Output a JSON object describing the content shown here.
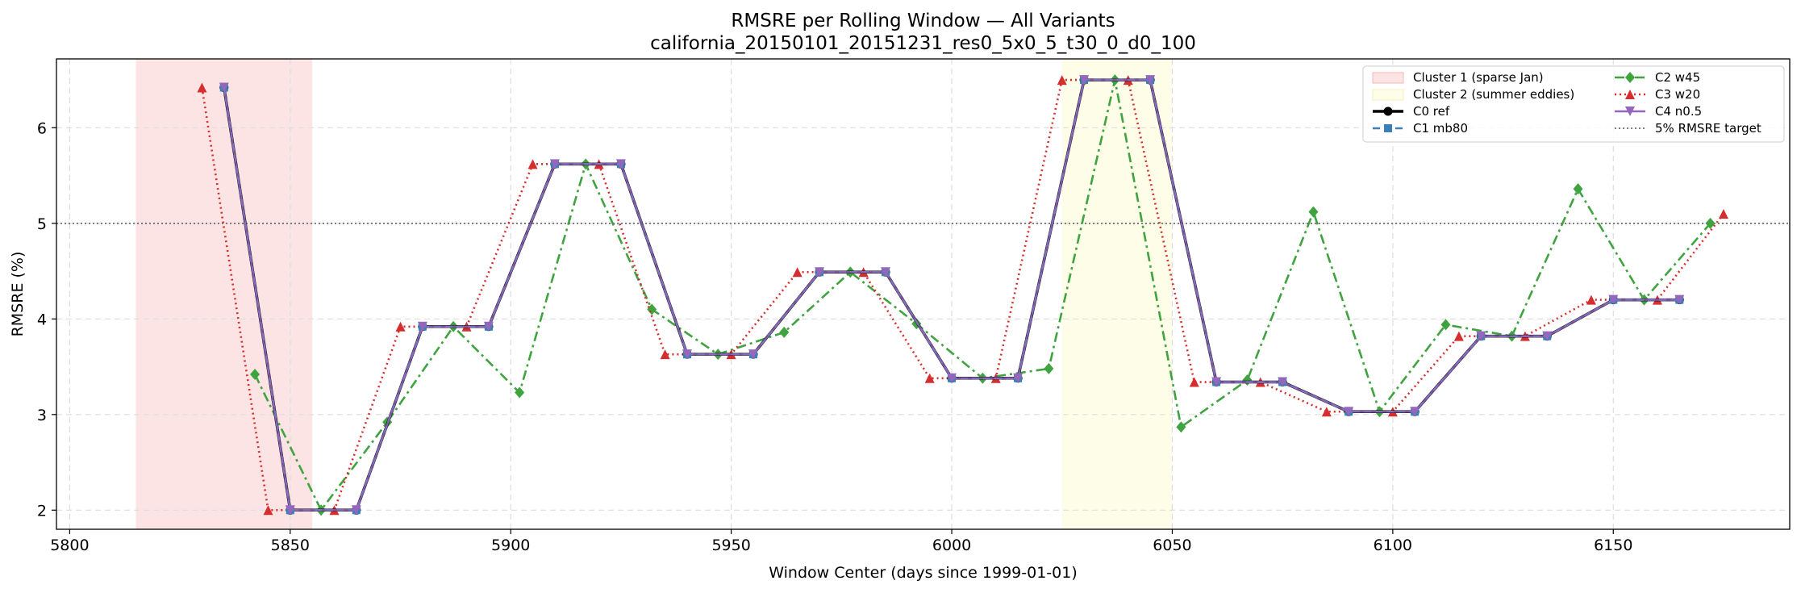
{
  "chart_data": {
    "type": "line",
    "title": "RMSRE per Rolling Window — All Variants",
    "subtitle": "california_20150101_20151231_res0_5x0_5_t30_0_d0_100",
    "xlabel": "Window Center (days since 1999-01-01)",
    "ylabel": "RMSRE (%)",
    "xlim": [
      5797,
      6190
    ],
    "ylim": [
      1.8,
      6.72
    ],
    "xticks": [
      5800,
      5850,
      5900,
      5950,
      6000,
      6050,
      6100,
      6150
    ],
    "yticks": [
      2,
      3,
      4,
      5,
      6
    ],
    "grid": true,
    "legend_position": "top-right",
    "reference_line": {
      "y": 5,
      "label": "5% RMSRE target",
      "color": "#555555"
    },
    "shaded_regions": [
      {
        "label": "Cluster 1 (sparse Jan)",
        "x": [
          5815,
          5855
        ],
        "color": "#fde4e4"
      },
      {
        "label": "Cluster 2 (summer eddies)",
        "x": [
          6025,
          6050
        ],
        "color": "#fefde8"
      }
    ],
    "series": [
      {
        "name": "C0 ref",
        "color": "#000000",
        "marker": "circle",
        "dash": "solid",
        "x": [
          5835,
          5850,
          5865,
          5880,
          5895,
          5910,
          5925,
          5940,
          5955,
          5970,
          5985,
          6000,
          6015,
          6030,
          6045,
          6060,
          6075,
          6090,
          6105,
          6120,
          6135,
          6150,
          6165
        ],
        "y": [
          6.42,
          2.0,
          2.0,
          3.92,
          3.92,
          5.62,
          5.62,
          3.63,
          3.63,
          4.49,
          4.49,
          3.38,
          3.38,
          6.5,
          6.5,
          3.34,
          3.34,
          3.03,
          3.03,
          3.82,
          3.82,
          4.2,
          4.2
        ]
      },
      {
        "name": "C1 mb80",
        "color": "#3a7fb8",
        "marker": "square",
        "dash": "dashed",
        "x": [
          5835,
          5850,
          5865,
          5880,
          5895,
          5910,
          5925,
          5940,
          5955,
          5970,
          5985,
          6000,
          6015,
          6030,
          6045,
          6060,
          6075,
          6090,
          6105,
          6120,
          6135,
          6150,
          6165
        ],
        "y": [
          6.42,
          2.0,
          2.0,
          3.92,
          3.92,
          5.62,
          5.62,
          3.63,
          3.63,
          4.49,
          4.49,
          3.38,
          3.38,
          6.5,
          6.5,
          3.34,
          3.34,
          3.03,
          3.03,
          3.82,
          3.82,
          4.2,
          4.2
        ]
      },
      {
        "name": "C2 w45",
        "color": "#3fa33f",
        "marker": "diamond",
        "dash": "dashdot",
        "x": [
          5842,
          5857,
          5872,
          5887,
          5902,
          5917,
          5932,
          5947,
          5962,
          5977,
          5992,
          6007,
          6022,
          6037,
          6052,
          6067,
          6082,
          6097,
          6112,
          6127,
          6142,
          6157,
          6172
        ],
        "y": [
          3.42,
          2.0,
          2.92,
          3.92,
          3.23,
          5.62,
          4.1,
          3.63,
          3.86,
          4.49,
          3.95,
          3.38,
          3.48,
          6.5,
          2.87,
          3.36,
          5.12,
          3.03,
          3.94,
          3.82,
          5.36,
          4.2,
          5.0
        ]
      },
      {
        "name": "C3 w20",
        "color": "#d62e2e",
        "marker": "triangle-up",
        "dash": "dotted",
        "x": [
          5830,
          5845,
          5860,
          5875,
          5890,
          5905,
          5920,
          5935,
          5950,
          5965,
          5980,
          5995,
          6010,
          6025,
          6040,
          6055,
          6070,
          6085,
          6100,
          6115,
          6130,
          6145,
          6160,
          6175
        ],
        "y": [
          6.42,
          2.0,
          2.0,
          3.92,
          3.92,
          5.62,
          5.62,
          3.63,
          3.63,
          4.49,
          4.49,
          3.38,
          3.38,
          6.5,
          6.5,
          3.34,
          3.34,
          3.03,
          3.03,
          3.82,
          3.82,
          4.2,
          4.2,
          5.1
        ]
      },
      {
        "name": "C4 n0.5",
        "color": "#9467bd",
        "marker": "triangle-down",
        "dash": "solid",
        "x": [
          5835,
          5850,
          5865,
          5880,
          5895,
          5910,
          5925,
          5940,
          5955,
          5970,
          5985,
          6000,
          6015,
          6030,
          6045,
          6060,
          6075,
          6090,
          6105,
          6120,
          6135,
          6150,
          6165
        ],
        "y": [
          6.42,
          2.0,
          2.0,
          3.92,
          3.92,
          5.62,
          5.62,
          3.63,
          3.63,
          4.49,
          4.49,
          3.38,
          3.38,
          6.5,
          6.5,
          3.34,
          3.34,
          3.03,
          3.03,
          3.82,
          3.82,
          4.2,
          4.2
        ]
      }
    ]
  }
}
